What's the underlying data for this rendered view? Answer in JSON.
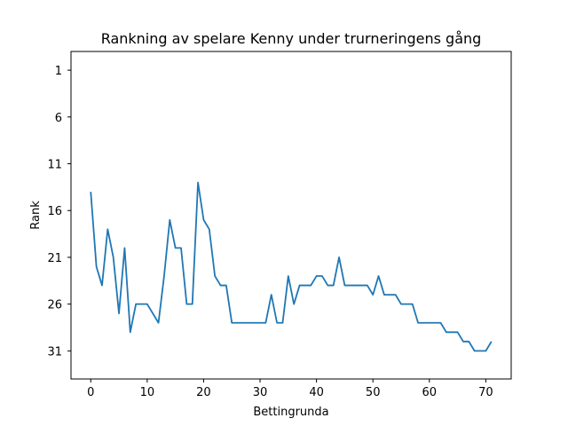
{
  "chart_data": {
    "type": "line",
    "title": "Rankning av spelare Kenny under trurneringens gång",
    "xlabel": "Bettingrunda",
    "ylabel": "Rank",
    "xlim": [
      -3.5,
      74.5
    ],
    "ylim": [
      34,
      -1
    ],
    "y_inverted": true,
    "grid": false,
    "xticks": [
      0,
      10,
      20,
      30,
      40,
      50,
      60,
      70
    ],
    "yticks": [
      1,
      6,
      11,
      16,
      21,
      26,
      31
    ],
    "line_color": "#1f77b4",
    "series": [
      {
        "x": [
          0,
          1,
          2,
          3,
          4,
          5,
          6,
          7,
          8,
          9,
          10,
          11,
          12,
          13,
          14,
          15,
          16,
          17,
          18,
          19,
          20,
          21,
          22,
          23,
          24,
          25,
          26,
          27,
          28,
          29,
          30,
          31,
          32,
          33,
          34,
          35,
          36,
          37,
          38,
          39,
          40,
          41,
          42,
          43,
          44,
          45,
          46,
          47,
          48,
          49,
          50,
          51,
          52,
          53,
          54,
          55,
          56,
          57,
          58,
          59,
          60,
          61,
          62,
          63,
          64,
          65,
          66,
          67,
          68,
          69,
          70,
          71
        ],
        "y": [
          14,
          22,
          24,
          18,
          21,
          27,
          20,
          29,
          26,
          26,
          26,
          27,
          28,
          23,
          17,
          20,
          20,
          26,
          26,
          13,
          17,
          18,
          23,
          24,
          24,
          28,
          28,
          28,
          28,
          28,
          28,
          28,
          25,
          28,
          28,
          23,
          26,
          24,
          24,
          24,
          23,
          23,
          24,
          24,
          21,
          24,
          24,
          24,
          24,
          24,
          25,
          23,
          25,
          25,
          25,
          26,
          26,
          26,
          28,
          28,
          28,
          28,
          28,
          29,
          29,
          29,
          30,
          30,
          31,
          31,
          31,
          30
        ]
      }
    ]
  }
}
